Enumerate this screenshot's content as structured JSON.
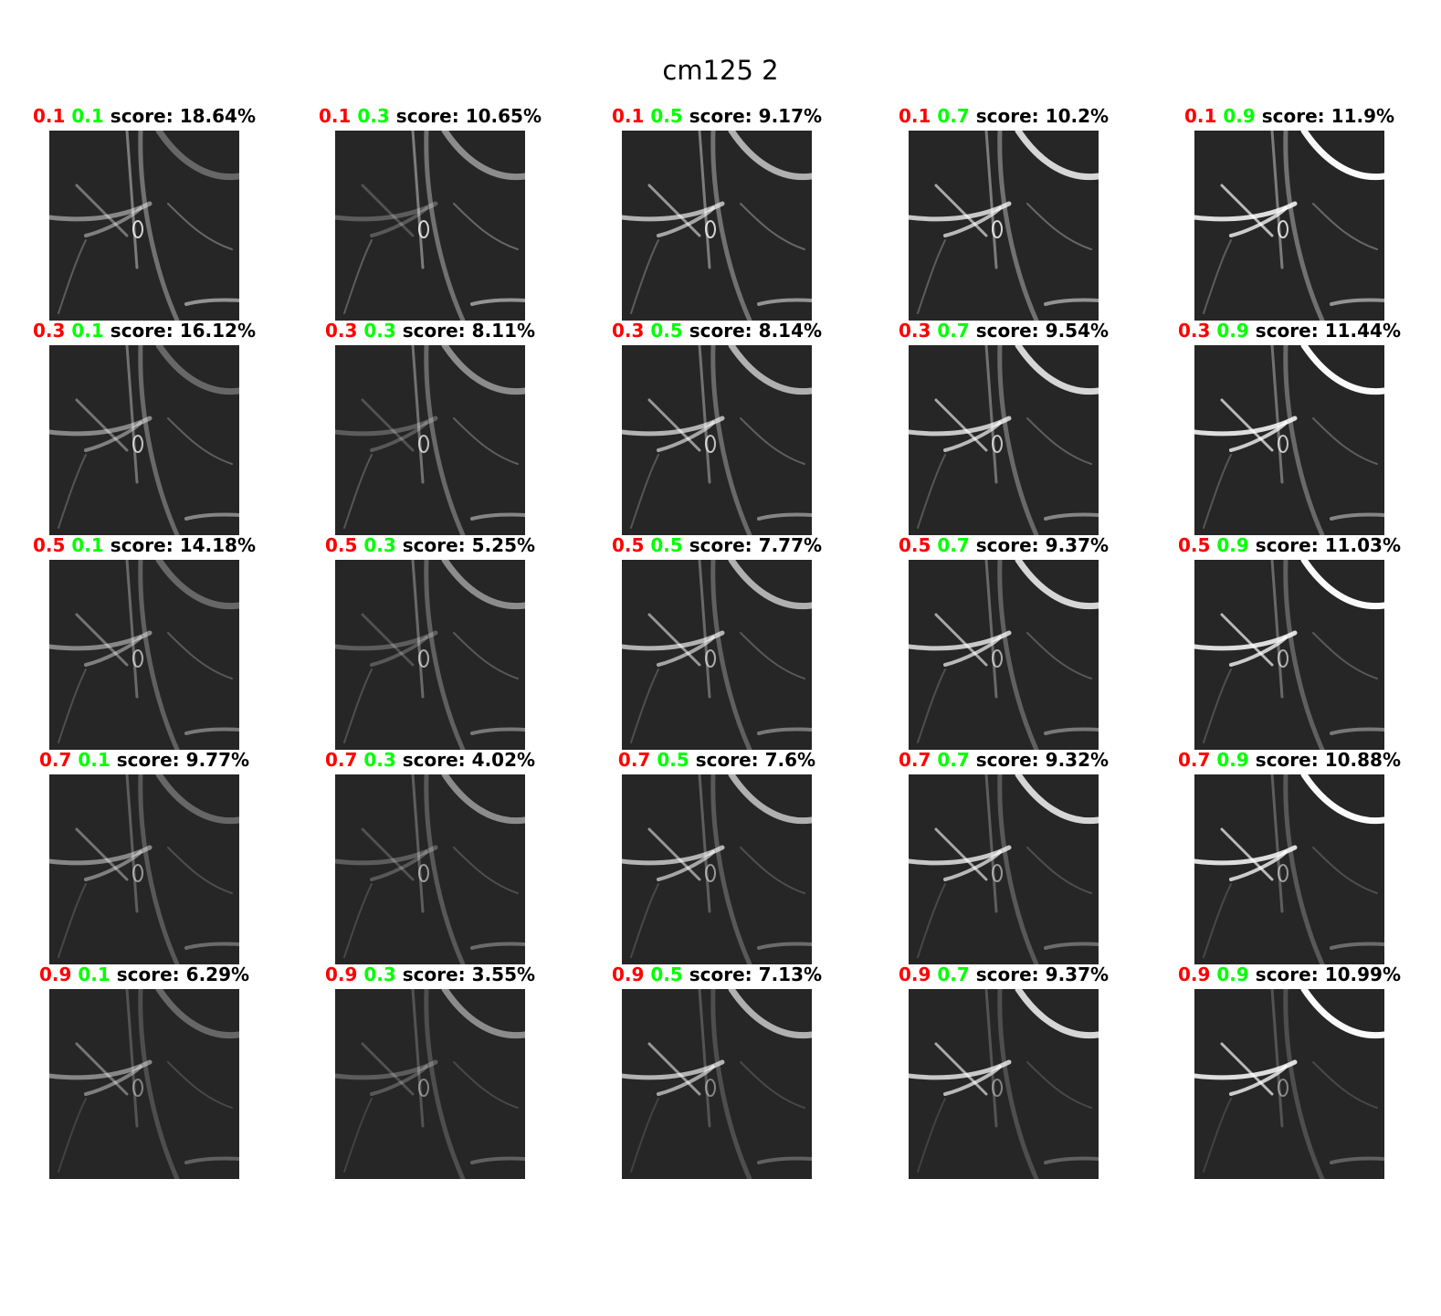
{
  "title": "cm125 2",
  "score_label": "score:",
  "colors": {
    "param1": "#ff0000",
    "param2": "#00ff00",
    "text": "#000000",
    "panel_bg": "#262626"
  },
  "rows": [
    [
      {
        "p1": "0.1",
        "p2": "0.1",
        "score": "18.64%"
      },
      {
        "p1": "0.1",
        "p2": "0.3",
        "score": "10.65%"
      },
      {
        "p1": "0.1",
        "p2": "0.5",
        "score": "9.17%"
      },
      {
        "p1": "0.1",
        "p2": "0.7",
        "score": "10.2%"
      },
      {
        "p1": "0.1",
        "p2": "0.9",
        "score": "11.9%"
      }
    ],
    [
      {
        "p1": "0.3",
        "p2": "0.1",
        "score": "16.12%"
      },
      {
        "p1": "0.3",
        "p2": "0.3",
        "score": "8.11%"
      },
      {
        "p1": "0.3",
        "p2": "0.5",
        "score": "8.14%"
      },
      {
        "p1": "0.3",
        "p2": "0.7",
        "score": "9.54%"
      },
      {
        "p1": "0.3",
        "p2": "0.9",
        "score": "11.44%"
      }
    ],
    [
      {
        "p1": "0.5",
        "p2": "0.1",
        "score": "14.18%"
      },
      {
        "p1": "0.5",
        "p2": "0.3",
        "score": "5.25%"
      },
      {
        "p1": "0.5",
        "p2": "0.5",
        "score": "7.77%"
      },
      {
        "p1": "0.5",
        "p2": "0.7",
        "score": "9.37%"
      },
      {
        "p1": "0.5",
        "p2": "0.9",
        "score": "11.03%"
      }
    ],
    [
      {
        "p1": "0.7",
        "p2": "0.1",
        "score": "9.77%"
      },
      {
        "p1": "0.7",
        "p2": "0.3",
        "score": "4.02%"
      },
      {
        "p1": "0.7",
        "p2": "0.5",
        "score": "7.6%"
      },
      {
        "p1": "0.7",
        "p2": "0.7",
        "score": "9.32%"
      },
      {
        "p1": "0.7",
        "p2": "0.9",
        "score": "10.88%"
      }
    ],
    [
      {
        "p1": "0.9",
        "p2": "0.1",
        "score": "6.29%"
      },
      {
        "p1": "0.9",
        "p2": "0.3",
        "score": "3.55%"
      },
      {
        "p1": "0.9",
        "p2": "0.5",
        "score": "7.13%"
      },
      {
        "p1": "0.9",
        "p2": "0.7",
        "score": "9.37%"
      },
      {
        "p1": "0.9",
        "p2": "0.9",
        "score": "10.99%"
      }
    ]
  ]
}
